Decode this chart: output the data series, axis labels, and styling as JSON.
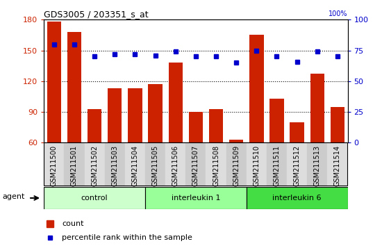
{
  "title": "GDS3005 / 203351_s_at",
  "samples": [
    "GSM211500",
    "GSM211501",
    "GSM211502",
    "GSM211503",
    "GSM211504",
    "GSM211505",
    "GSM211506",
    "GSM211507",
    "GSM211508",
    "GSM211509",
    "GSM211510",
    "GSM211511",
    "GSM211512",
    "GSM211513",
    "GSM211514"
  ],
  "counts": [
    178,
    168,
    93,
    113,
    113,
    117,
    138,
    90,
    93,
    63,
    165,
    103,
    80,
    127,
    95
  ],
  "percentile": [
    80,
    80,
    70,
    72,
    72,
    71,
    74,
    70,
    70,
    65,
    75,
    70,
    66,
    74,
    70
  ],
  "ylim_left": [
    60,
    180
  ],
  "ylim_right": [
    0,
    100
  ],
  "yticks_left": [
    60,
    90,
    120,
    150,
    180
  ],
  "yticks_right": [
    0,
    25,
    50,
    75,
    100
  ],
  "groups": [
    {
      "label": "control",
      "start": 0,
      "end": 5,
      "color": "#ccffcc"
    },
    {
      "label": "interleukin 1",
      "start": 5,
      "end": 10,
      "color": "#99ff99"
    },
    {
      "label": "interleukin 6",
      "start": 10,
      "end": 15,
      "color": "#44dd44"
    }
  ],
  "bar_color": "#cc2200",
  "dot_color": "#0000cc",
  "axis_left_color": "#cc2200",
  "axis_right_color": "#0000cc",
  "agent_label": "agent",
  "legend_count_label": "count",
  "legend_pct_label": "percentile rank within the sample",
  "right_top_label": "100%"
}
